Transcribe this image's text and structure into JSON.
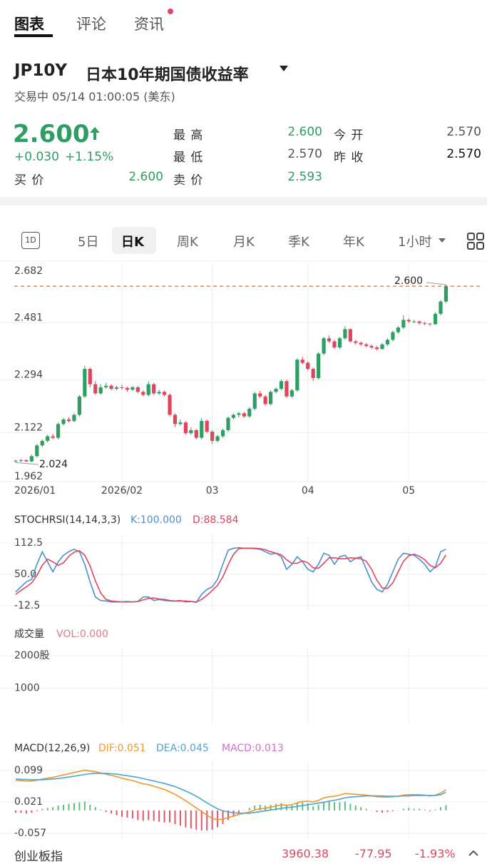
{
  "tabs": [
    "图表",
    "评论",
    "资讯"
  ],
  "quote": {
    "symbol": "JP10Y",
    "name": "日本10年期国债收益率",
    "status": "交易中 05/14 01:00:05 (美东)",
    "price": "2.600",
    "change": "+0.030",
    "change_pct": "+1.15%",
    "stats": [
      {
        "label": "最 高",
        "value": "2.600"
      },
      {
        "label": "今 开",
        "value": "2.570"
      },
      {
        "label": "最 低",
        "value": "2.570"
      },
      {
        "label": "昨 收",
        "value": "2.570"
      },
      {
        "label": "买 价",
        "value": "2.600"
      },
      {
        "label": "卖 价",
        "value": "2.593"
      }
    ]
  },
  "periods": {
    "icon": "1D",
    "items": [
      "5日",
      "日K",
      "周K",
      "月K",
      "季K",
      "年K",
      "1小时"
    ],
    "selected": 1
  },
  "chart_data": [
    {
      "type": "candlestick",
      "ylim": [
        1.962,
        2.682
      ],
      "yticks": [
        2.682,
        2.481,
        2.294,
        2.122,
        1.962
      ],
      "xticks": [
        {
          "value": 0,
          "label": "2026/01"
        },
        {
          "value": 20,
          "label": "2026/02"
        },
        {
          "value": 37,
          "label": "03"
        },
        {
          "value": 55,
          "label": "04"
        },
        {
          "value": 74,
          "label": "05"
        }
      ],
      "up_color": "#2f9e62",
      "down_color": "#e0455c",
      "reference_line": {
        "value": 2.6,
        "label": "2.600",
        "color": "#f07a2a"
      },
      "low_label": 2.024,
      "candles": [
        [
          2.028,
          2.034,
          2.024,
          2.03
        ],
        [
          2.03,
          2.036,
          2.026,
          2.032
        ],
        [
          2.032,
          2.035,
          2.026,
          2.028
        ],
        [
          2.028,
          2.05,
          2.025,
          2.045
        ],
        [
          2.045,
          2.085,
          2.04,
          2.08
        ],
        [
          2.08,
          2.1,
          2.075,
          2.095
        ],
        [
          2.095,
          2.115,
          2.09,
          2.11
        ],
        [
          2.11,
          2.118,
          2.1,
          2.105
        ],
        [
          2.105,
          2.155,
          2.1,
          2.15
        ],
        [
          2.15,
          2.17,
          2.145,
          2.165
        ],
        [
          2.165,
          2.172,
          2.155,
          2.16
        ],
        [
          2.16,
          2.185,
          2.155,
          2.18
        ],
        [
          2.18,
          2.245,
          2.175,
          2.24
        ],
        [
          2.24,
          2.34,
          2.235,
          2.33
        ],
        [
          2.33,
          2.335,
          2.27,
          2.28
        ],
        [
          2.28,
          2.29,
          2.245,
          2.25
        ],
        [
          2.25,
          2.28,
          2.245,
          2.27
        ],
        [
          2.27,
          2.285,
          2.265,
          2.275
        ],
        [
          2.275,
          2.28,
          2.26,
          2.265
        ],
        [
          2.265,
          2.275,
          2.26,
          2.27
        ],
        [
          2.27,
          2.278,
          2.262,
          2.268
        ],
        [
          2.268,
          2.272,
          2.255,
          2.262
        ],
        [
          2.262,
          2.275,
          2.258,
          2.27
        ],
        [
          2.27,
          2.274,
          2.25,
          2.255
        ],
        [
          2.255,
          2.26,
          2.24,
          2.245
        ],
        [
          2.245,
          2.29,
          2.24,
          2.28
        ],
        [
          2.28,
          2.285,
          2.245,
          2.25
        ],
        [
          2.25,
          2.262,
          2.245,
          2.255
        ],
        [
          2.255,
          2.26,
          2.24,
          2.245
        ],
        [
          2.245,
          2.25,
          2.175,
          2.18
        ],
        [
          2.18,
          2.185,
          2.14,
          2.15
        ],
        [
          2.15,
          2.165,
          2.145,
          2.155
        ],
        [
          2.155,
          2.16,
          2.115,
          2.12
        ],
        [
          2.12,
          2.14,
          2.115,
          2.13
        ],
        [
          2.13,
          2.135,
          2.1,
          2.105
        ],
        [
          2.105,
          2.17,
          2.1,
          2.16
        ],
        [
          2.16,
          2.165,
          2.12,
          2.125
        ],
        [
          2.125,
          2.13,
          2.085,
          2.095
        ],
        [
          2.095,
          2.115,
          2.09,
          2.11
        ],
        [
          2.11,
          2.135,
          2.105,
          2.13
        ],
        [
          2.13,
          2.175,
          2.125,
          2.17
        ],
        [
          2.17,
          2.185,
          2.165,
          2.18
        ],
        [
          2.18,
          2.19,
          2.172,
          2.185
        ],
        [
          2.185,
          2.19,
          2.17,
          2.175
        ],
        [
          2.175,
          2.205,
          2.17,
          2.2
        ],
        [
          2.2,
          2.255,
          2.195,
          2.25
        ],
        [
          2.25,
          2.258,
          2.235,
          2.24
        ],
        [
          2.24,
          2.245,
          2.21,
          2.215
        ],
        [
          2.215,
          2.26,
          2.21,
          2.255
        ],
        [
          2.255,
          2.27,
          2.25,
          2.265
        ],
        [
          2.265,
          2.295,
          2.26,
          2.29
        ],
        [
          2.29,
          2.295,
          2.235,
          2.24
        ],
        [
          2.24,
          2.265,
          2.235,
          2.26
        ],
        [
          2.26,
          2.365,
          2.255,
          2.36
        ],
        [
          2.36,
          2.37,
          2.345,
          2.35
        ],
        [
          2.35,
          2.355,
          2.325,
          2.33
        ],
        [
          2.33,
          2.335,
          2.29,
          2.3
        ],
        [
          2.3,
          2.385,
          2.295,
          2.38
        ],
        [
          2.38,
          2.435,
          2.375,
          2.43
        ],
        [
          2.43,
          2.44,
          2.415,
          2.42
        ],
        [
          2.42,
          2.425,
          2.395,
          2.4
        ],
        [
          2.4,
          2.435,
          2.395,
          2.43
        ],
        [
          2.43,
          2.47,
          2.425,
          2.46
        ],
        [
          2.46,
          2.462,
          2.415,
          2.42
        ],
        [
          2.42,
          2.425,
          2.41,
          2.415
        ],
        [
          2.415,
          2.42,
          2.405,
          2.41
        ],
        [
          2.41,
          2.415,
          2.4,
          2.405
        ],
        [
          2.405,
          2.41,
          2.395,
          2.4
        ],
        [
          2.4,
          2.405,
          2.39,
          2.395
        ],
        [
          2.395,
          2.415,
          2.392,
          2.41
        ],
        [
          2.41,
          2.43,
          2.405,
          2.425
        ],
        [
          2.425,
          2.455,
          2.42,
          2.45
        ],
        [
          2.45,
          2.47,
          2.445,
          2.465
        ],
        [
          2.465,
          2.505,
          2.46,
          2.49
        ],
        [
          2.49,
          2.495,
          2.48,
          2.485
        ],
        [
          2.485,
          2.49,
          2.48,
          2.485
        ],
        [
          2.485,
          2.488,
          2.475,
          2.48
        ],
        [
          2.48,
          2.484,
          2.472,
          2.478
        ],
        [
          2.478,
          2.48,
          2.47,
          2.476
        ],
        [
          2.476,
          2.515,
          2.474,
          2.51
        ],
        [
          2.51,
          2.555,
          2.505,
          2.55
        ],
        [
          2.55,
          2.605,
          2.545,
          2.6
        ]
      ]
    },
    {
      "type": "line",
      "title": "STOCHRSI(14,14,3,3)",
      "ylim": [
        -12.5,
        112.5
      ],
      "yticks": [
        112.5,
        {
          "value": 50,
          "label": "50.0"
        },
        -12.5
      ],
      "series": [
        {
          "name": "K:100.000",
          "color": "#4a8fd0",
          "values": [
            15,
            25,
            35,
            40,
            70,
            95,
            75,
            55,
            75,
            88,
            95,
            100,
            95,
            70,
            35,
            5,
            -2,
            -3,
            -5,
            -5,
            -5,
            -4,
            -5,
            -4,
            5,
            5,
            -2,
            0,
            -2,
            -3,
            -3,
            -2,
            -5,
            -4,
            -6,
            10,
            20,
            25,
            40,
            70,
            98,
            102,
            103,
            102,
            102,
            101,
            100,
            95,
            90,
            92,
            85,
            60,
            70,
            85,
            75,
            60,
            55,
            70,
            92,
            88,
            70,
            85,
            88,
            75,
            82,
            85,
            60,
            35,
            20,
            15,
            30,
            55,
            80,
            92,
            90,
            88,
            80,
            70,
            55,
            65,
            95,
            100
          ]
        },
        {
          "name": "D:88.584",
          "color": "#e0455c",
          "values": [
            10,
            18,
            25,
            33,
            48,
            68,
            80,
            75,
            68,
            73,
            86,
            94,
            97,
            88,
            67,
            37,
            13,
            0,
            -3,
            -4,
            -5,
            -5,
            -5,
            -4,
            -1,
            2,
            3,
            1,
            0,
            -2,
            -3,
            -3,
            -3,
            -4,
            -5,
            0,
            8,
            18,
            28,
            45,
            69,
            90,
            101,
            102,
            102,
            102,
            101,
            99,
            95,
            92,
            89,
            79,
            72,
            72,
            77,
            73,
            63,
            62,
            72,
            83,
            83,
            81,
            81,
            83,
            82,
            81,
            76,
            60,
            38,
            23,
            22,
            33,
            55,
            76,
            87,
            90,
            86,
            79,
            68,
            63,
            72,
            88.584
          ]
        }
      ]
    },
    {
      "type": "bar",
      "title": "成交量",
      "ylim": [
        0,
        2200
      ],
      "yticks": [
        {
          "value": 2000,
          "label": "2000股"
        },
        1000
      ],
      "series": [
        {
          "name": "VOL:0.000",
          "color": "#e07a8a"
        }
      ]
    },
    {
      "type": "macd",
      "title": "MACD(12,26,9)",
      "ylim": [
        -0.057,
        0.099
      ],
      "yticks": [
        0.099,
        0.021,
        -0.057
      ],
      "series": [
        {
          "name": "DIF:0.051",
          "color": "#f0962a",
          "values": [
            0.075,
            0.074,
            0.073,
            0.073,
            0.075,
            0.078,
            0.08,
            0.082,
            0.085,
            0.088,
            0.091,
            0.094,
            0.097,
            0.1,
            0.098,
            0.096,
            0.093,
            0.09,
            0.087,
            0.084,
            0.08,
            0.077,
            0.074,
            0.07,
            0.066,
            0.064,
            0.06,
            0.056,
            0.052,
            0.046,
            0.04,
            0.032,
            0.024,
            0.015,
            0.006,
            -0.003,
            -0.012,
            -0.02,
            -0.023,
            -0.022,
            -0.018,
            -0.014,
            -0.01,
            -0.007,
            -0.004,
            0.001,
            0.004,
            0.005,
            0.008,
            0.011,
            0.014,
            0.013,
            0.014,
            0.019,
            0.022,
            0.023,
            0.021,
            0.025,
            0.031,
            0.034,
            0.035,
            0.038,
            0.042,
            0.041,
            0.04,
            0.039,
            0.038,
            0.036,
            0.034,
            0.033,
            0.033,
            0.034,
            0.035,
            0.038,
            0.039,
            0.039,
            0.039,
            0.038,
            0.036,
            0.038,
            0.043,
            0.051
          ]
        },
        {
          "name": "DEA:0.045",
          "color": "#4aa6d6",
          "values": [
            0.078,
            0.077,
            0.077,
            0.076,
            0.076,
            0.076,
            0.077,
            0.078,
            0.079,
            0.081,
            0.083,
            0.085,
            0.087,
            0.089,
            0.091,
            0.092,
            0.092,
            0.092,
            0.091,
            0.09,
            0.088,
            0.086,
            0.084,
            0.082,
            0.079,
            0.076,
            0.073,
            0.07,
            0.067,
            0.063,
            0.059,
            0.054,
            0.048,
            0.042,
            0.035,
            0.027,
            0.019,
            0.011,
            0.004,
            -0.001,
            -0.004,
            -0.006,
            -0.007,
            -0.007,
            -0.007,
            -0.005,
            -0.003,
            -0.001,
            0.001,
            0.003,
            0.005,
            0.007,
            0.008,
            0.01,
            0.012,
            0.014,
            0.016,
            0.018,
            0.02,
            0.023,
            0.025,
            0.028,
            0.031,
            0.033,
            0.034,
            0.035,
            0.036,
            0.036,
            0.036,
            0.036,
            0.035,
            0.035,
            0.035,
            0.036,
            0.036,
            0.037,
            0.037,
            0.037,
            0.037,
            0.037,
            0.039,
            0.045
          ]
        },
        {
          "name": "MACD:0.013",
          "color": "#d070c8",
          "up_color": "#5cbf7c",
          "down_color": "#e0566a",
          "values": [
            -0.006,
            -0.006,
            -0.008,
            -0.006,
            -0.002,
            0.004,
            0.006,
            0.008,
            0.012,
            0.014,
            0.016,
            0.018,
            0.02,
            0.022,
            0.014,
            0.008,
            0.002,
            -0.004,
            -0.008,
            -0.012,
            -0.016,
            -0.018,
            -0.02,
            -0.024,
            -0.026,
            -0.024,
            -0.026,
            -0.028,
            -0.03,
            -0.03,
            -0.034,
            -0.038,
            -0.042,
            -0.045,
            -0.048,
            -0.05,
            -0.05,
            -0.048,
            -0.042,
            -0.034,
            -0.024,
            -0.016,
            -0.006,
            0.0,
            0.006,
            0.012,
            0.014,
            0.012,
            0.014,
            0.016,
            0.018,
            0.012,
            0.012,
            0.018,
            0.02,
            0.018,
            0.01,
            0.014,
            0.022,
            0.022,
            0.02,
            0.02,
            0.022,
            0.016,
            0.012,
            0.008,
            0.004,
            0.0,
            -0.004,
            -0.006,
            -0.004,
            -0.002,
            0.0,
            0.004,
            0.006,
            0.004,
            0.004,
            0.002,
            -0.002,
            0.002,
            0.008,
            0.013
          ]
        }
      ]
    }
  ],
  "ticker": {
    "name": "创业板指",
    "value": "3960.38",
    "change": "-77.95",
    "change_pct": "-1.93%"
  }
}
